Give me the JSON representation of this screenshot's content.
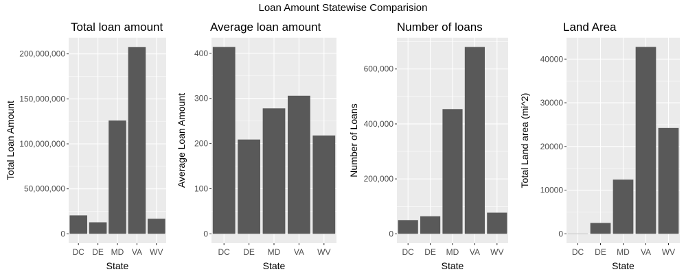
{
  "suptitle": "Loan Amount Statewise Comparision",
  "colors": {
    "panel_bg": "#EBEBEB",
    "grid_major": "#FFFFFF",
    "bar": "#595959",
    "tick_text": "#4D4D4D"
  },
  "chart_data": [
    {
      "type": "bar",
      "title": "Total loan amount",
      "xlabel": "State",
      "ylabel": "Total Loan Amount",
      "categories": [
        "DC",
        "DE",
        "MD",
        "VA",
        "WV"
      ],
      "values": [
        20500000,
        12800000,
        126000000,
        207500000,
        16700000
      ],
      "ylim": [
        -10400000,
        218000000
      ],
      "yticks": [
        0,
        50000000,
        100000000,
        150000000,
        200000000
      ],
      "ytick_labels": [
        "0",
        "50,000,000",
        "100,000,000",
        "150,000,000",
        "200,000,000"
      ],
      "grid": true
    },
    {
      "type": "bar",
      "title": "Average loan amount",
      "xlabel": "State",
      "ylabel": "Average Loan Amount",
      "categories": [
        "DC",
        "DE",
        "MD",
        "VA",
        "WV"
      ],
      "values": [
        414,
        209,
        278,
        306,
        218
      ],
      "ylim": [
        -20.7,
        434.7
      ],
      "yticks": [
        0,
        100,
        200,
        300,
        400
      ],
      "ytick_labels": [
        "0",
        "100",
        "200",
        "300",
        "400"
      ],
      "grid": true
    },
    {
      "type": "bar",
      "title": "Number of loans",
      "xlabel": "State",
      "ylabel": "Number of Loans",
      "categories": [
        "DC",
        "DE",
        "MD",
        "VA",
        "WV"
      ],
      "values": [
        50000,
        64000,
        454000,
        680000,
        77000
      ],
      "ylim": [
        -34000,
        714000
      ],
      "yticks": [
        0,
        200000,
        400000,
        600000
      ],
      "ytick_labels": [
        "0",
        "200,000",
        "400,000",
        "600,000"
      ],
      "grid": true
    },
    {
      "type": "bar",
      "title": "Land Area",
      "xlabel": "State",
      "ylabel": "Total Land area (mi^2)",
      "categories": [
        "DC",
        "DE",
        "MD",
        "VA",
        "WV"
      ],
      "values": [
        61,
        2490,
        12406,
        42775,
        24230
      ],
      "ylim": [
        -2140,
        44900
      ],
      "yticks": [
        0,
        10000,
        20000,
        30000,
        40000
      ],
      "ytick_labels": [
        "0",
        "10000",
        "20000",
        "30000",
        "40000"
      ],
      "grid": true
    }
  ]
}
